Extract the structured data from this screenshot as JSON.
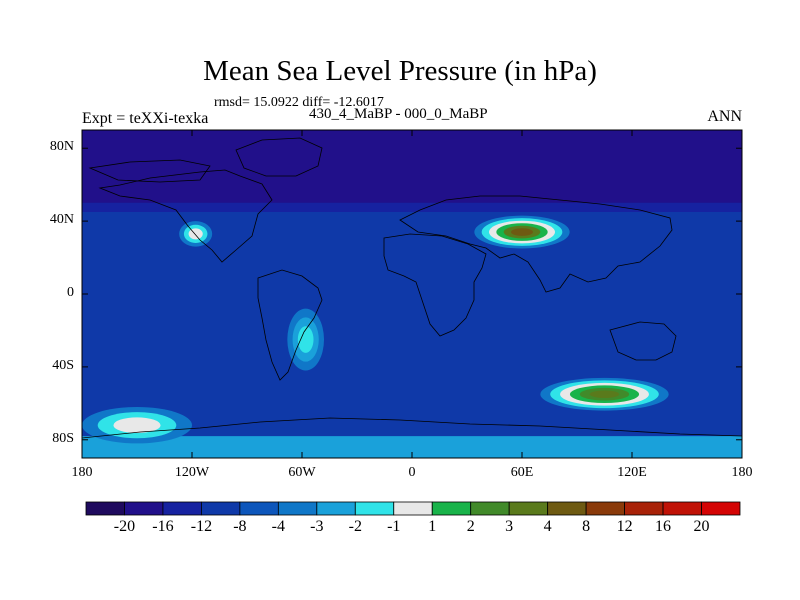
{
  "title": "Mean Sea Level Pressure (in hPa)",
  "stats_text": "rmsd= 15.0922 diff= -12.6017",
  "experiment_text": "Expt = teXXi-texka",
  "difference_label": "430_4_MaBP - 000_0_MaBP",
  "season": "ANN",
  "lat_ticks": [
    {
      "label": "80N",
      "lat": 80
    },
    {
      "label": "40N",
      "lat": 40
    },
    {
      "label": "0",
      "lat": 0
    },
    {
      "label": "40S",
      "lat": -40
    },
    {
      "label": "80S",
      "lat": -80
    }
  ],
  "lon_ticks": [
    {
      "label": "180",
      "lon": -180
    },
    {
      "label": "120W",
      "lon": -120
    },
    {
      "label": "60W",
      "lon": -60
    },
    {
      "label": "0",
      "lon": 0
    },
    {
      "label": "60E",
      "lon": 60
    },
    {
      "label": "120E",
      "lon": 120
    },
    {
      "label": "180",
      "lon": 180
    }
  ],
  "colorbar": {
    "levels": [
      "-20",
      "-16",
      "-12",
      "-8",
      "-4",
      "-3",
      "-2",
      "-1",
      "1",
      "2",
      "3",
      "4",
      "8",
      "12",
      "16",
      "20"
    ],
    "colors": [
      "#1f0a5e",
      "#21108a",
      "#1622a0",
      "#0f39a8",
      "#0d56bb",
      "#1077c8",
      "#1aa1da",
      "#30e3e8",
      "#e8e8e8",
      "#19b34a",
      "#418a2a",
      "#5a7a1c",
      "#6e5a12",
      "#8a3a0a",
      "#a82208",
      "#c01206",
      "#d40404"
    ]
  },
  "chart_data": {
    "type": "heatmap",
    "title": "Mean Sea Level Pressure (in hPa)",
    "units": "hPa",
    "projection": "cylindrical equidistant",
    "xlim": [
      -180,
      180
    ],
    "ylim": [
      -90,
      90
    ],
    "rmsd": 15.0922,
    "mean_diff": -12.6017,
    "experiment": "teXXi-texka",
    "comparison": "430_4_MaBP - 000_0_MaBP",
    "period": "ANN",
    "background_value": -12,
    "bands": [
      {
        "lat_from": 90,
        "lat_to": 50,
        "value": -20
      },
      {
        "lat_from": 50,
        "lat_to": 45,
        "value": -16
      },
      {
        "lat_from": -78,
        "lat_to": -90,
        "value": -3
      }
    ],
    "features": [
      {
        "name": "asian-high",
        "lon": 60,
        "lat": 34,
        "rx": 26,
        "ry": 9,
        "levels": [
          -4,
          -2,
          -1,
          1,
          3,
          4
        ]
      },
      {
        "name": "southern-ocean-high",
        "lon": 105,
        "lat": -55,
        "rx": 35,
        "ry": 9,
        "levels": [
          -4,
          -2,
          -1,
          1,
          2,
          3
        ]
      },
      {
        "name": "north-american-anomaly",
        "lon": -118,
        "lat": 33,
        "rx": 9,
        "ry": 7,
        "levels": [
          -4,
          -2,
          -1
        ]
      },
      {
        "name": "south-american-anomaly",
        "lon": -58,
        "lat": -25,
        "rx": 10,
        "ry": 17,
        "levels": [
          -4,
          -3,
          -2
        ]
      },
      {
        "name": "southern-coastal-high",
        "lon": -150,
        "lat": -72,
        "rx": 30,
        "ry": 10,
        "levels": [
          -4,
          -2,
          -1
        ]
      }
    ]
  }
}
